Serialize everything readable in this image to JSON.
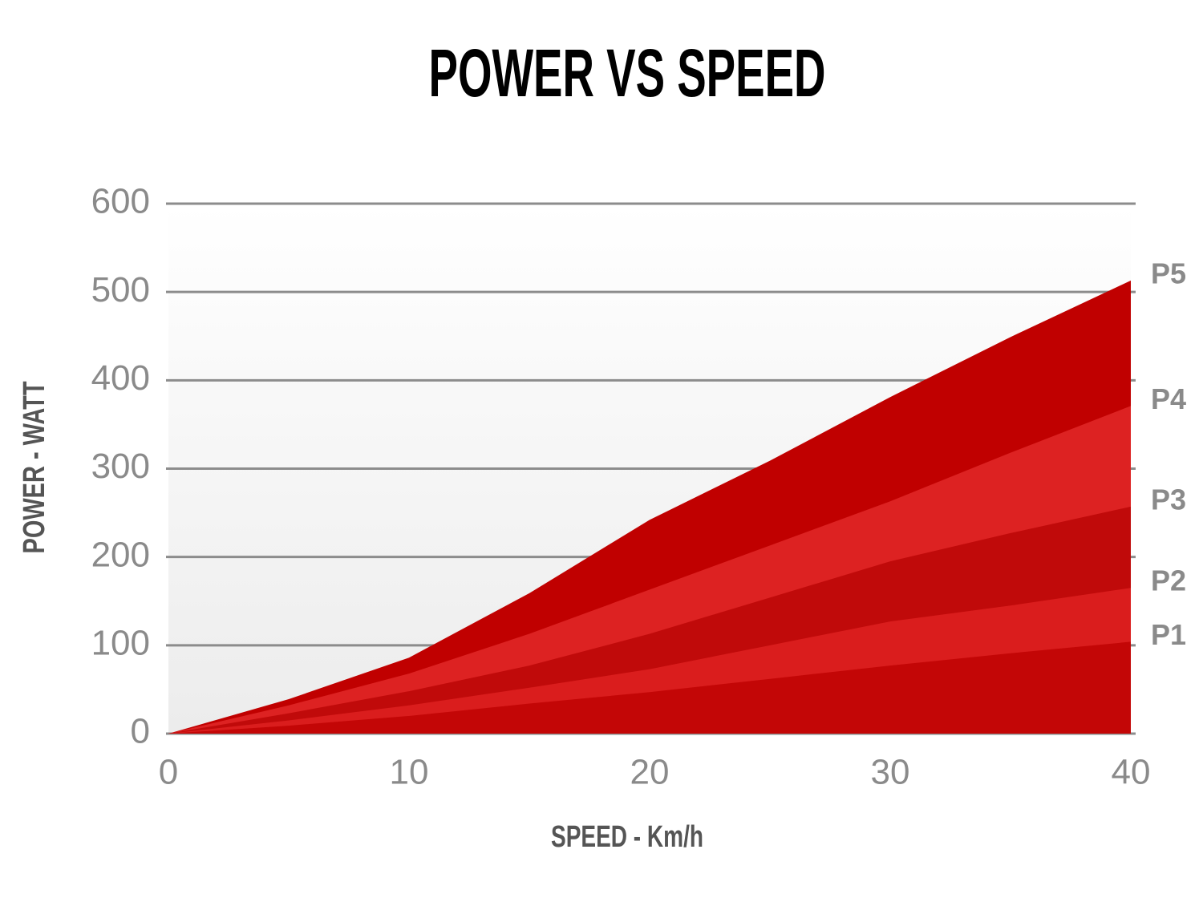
{
  "chart_data": {
    "type": "area",
    "title": "POWER VS SPEED",
    "x_label": "SPEED - Km/h",
    "y_label": "POWER - WATT",
    "x": [
      0,
      5,
      10,
      15,
      20,
      25,
      30,
      35,
      40
    ],
    "series": [
      {
        "name": "P1",
        "color": "#c30606",
        "values": [
          0,
          9,
          20,
          34,
          47,
          62,
          77,
          91,
          104
        ]
      },
      {
        "name": "P2",
        "color": "#da1d1d",
        "values": [
          0,
          15,
          32,
          52,
          73,
          100,
          127,
          145,
          165
        ]
      },
      {
        "name": "P3",
        "color": "#c00a0a",
        "values": [
          0,
          23,
          48,
          77,
          113,
          154,
          195,
          227,
          257
        ]
      },
      {
        "name": "P4",
        "color": "#dd2222",
        "values": [
          0,
          32,
          68,
          113,
          163,
          213,
          263,
          318,
          371
        ]
      },
      {
        "name": "P5",
        "color": "#c00000",
        "values": [
          0,
          39,
          86,
          159,
          242,
          309,
          381,
          449,
          513
        ]
      }
    ],
    "xlim": [
      0,
      40
    ],
    "xticks": [
      0,
      10,
      20,
      30,
      40
    ],
    "ylim": [
      0,
      600
    ],
    "yticks": [
      0,
      100,
      200,
      300,
      400,
      500,
      600
    ],
    "grid": true
  }
}
